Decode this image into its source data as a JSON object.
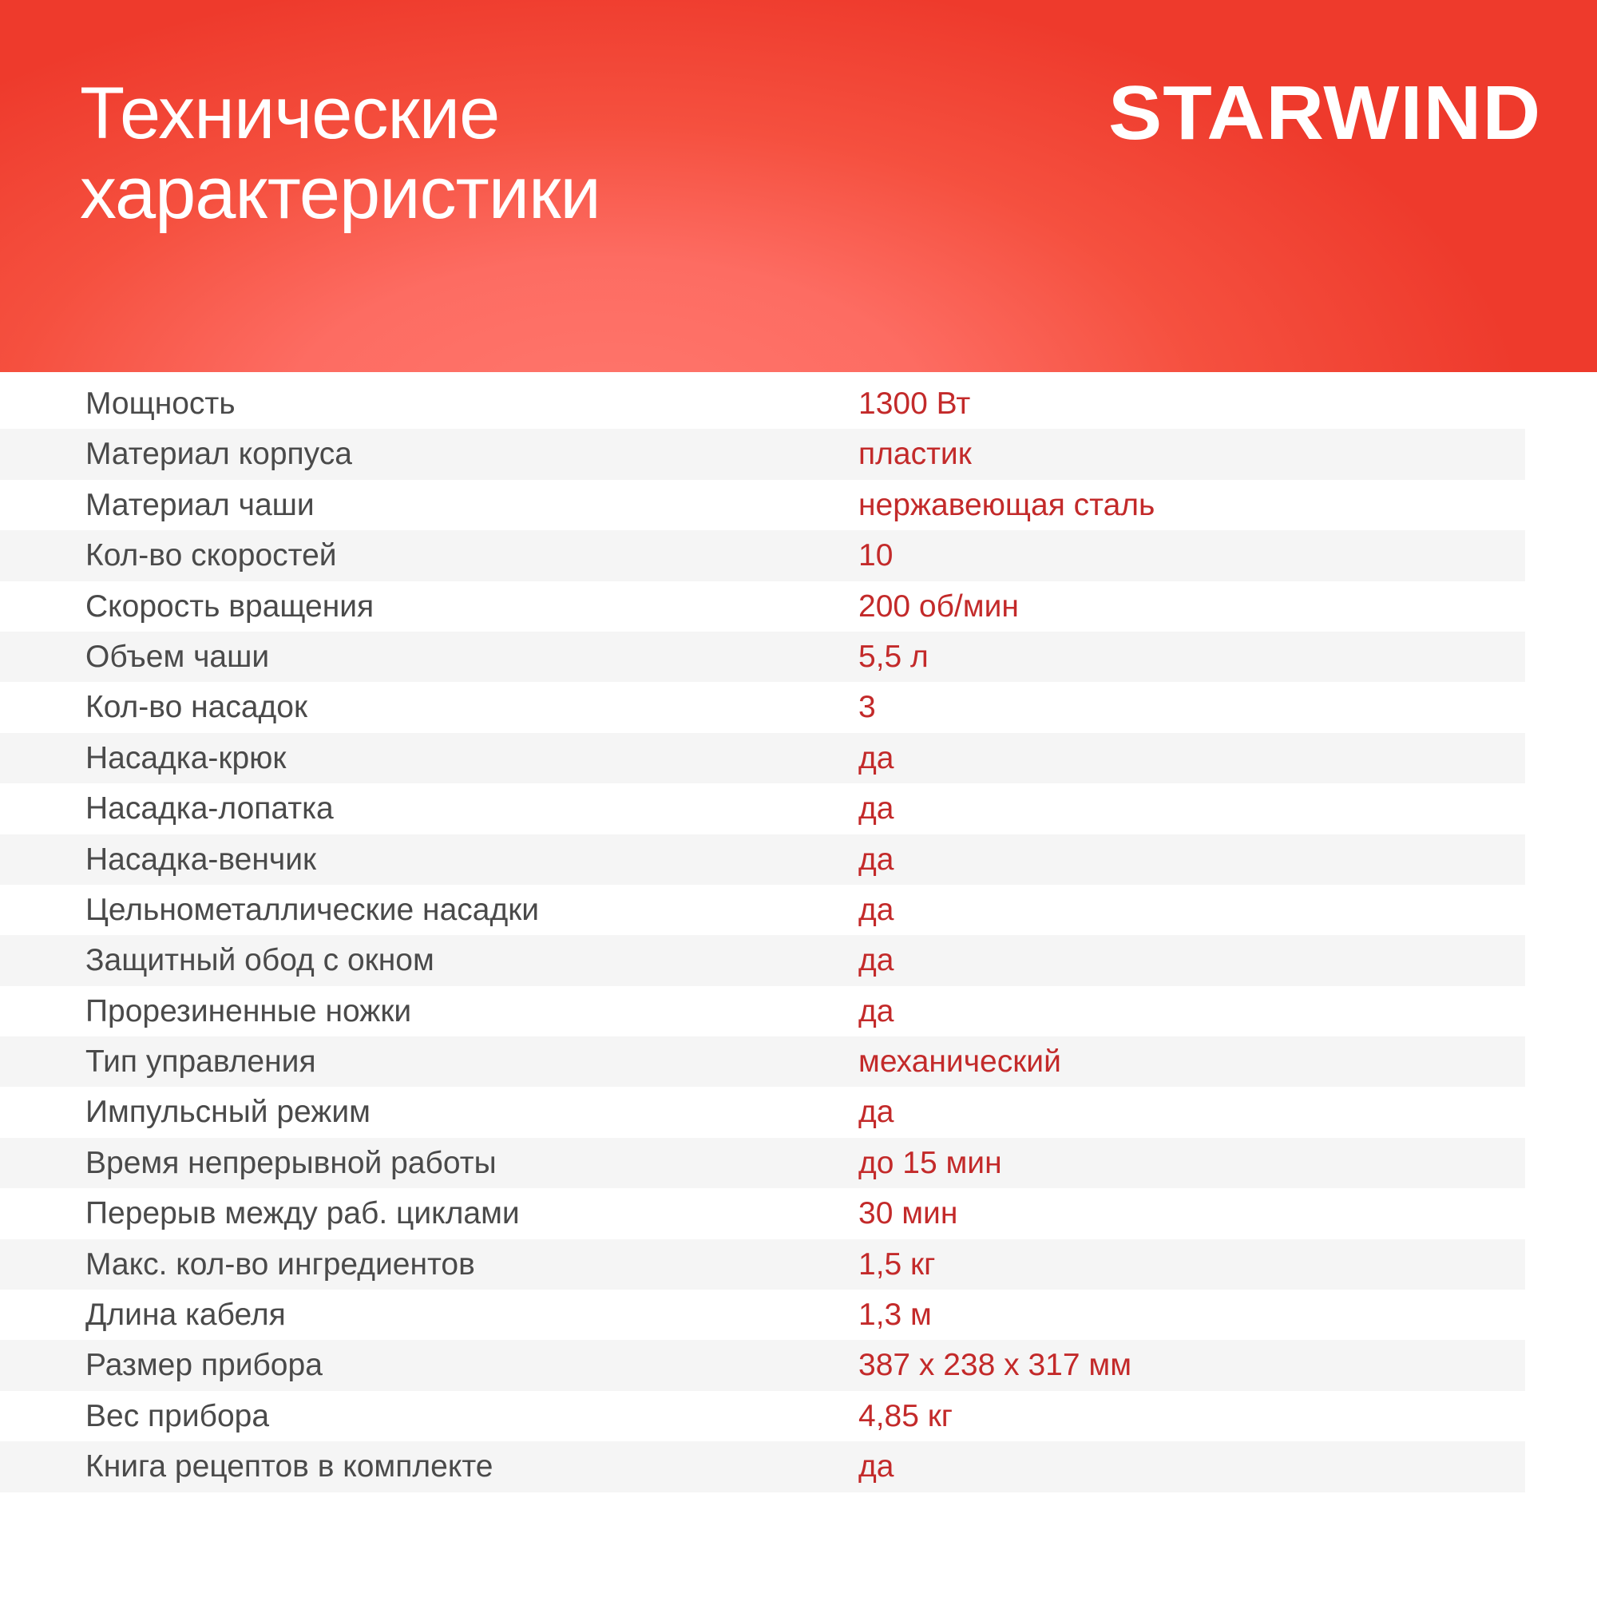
{
  "header": {
    "title_line1": "Технические",
    "title_line2": "характеристики",
    "logo": "STARWIND",
    "colors": {
      "gradient_edge": "#ee3a2c",
      "gradient_center": "#ff766c"
    }
  },
  "specs": [
    {
      "label": "Мощность",
      "value": "1300 Вт"
    },
    {
      "label": "Материал корпуса",
      "value": "пластик"
    },
    {
      "label": "Материал чаши",
      "value": "нержавеющая сталь"
    },
    {
      "label": "Кол-во скоростей",
      "value": "10"
    },
    {
      "label": "Скорость вращения",
      "value": "200 об/мин"
    },
    {
      "label": "Объем чаши",
      "value": "5,5 л"
    },
    {
      "label": "Кол-во насадок",
      "value": "3"
    },
    {
      "label": "Насадка-крюк",
      "value": "да"
    },
    {
      "label": "Насадка-лопатка",
      "value": "да"
    },
    {
      "label": "Насадка-венчик",
      "value": "да"
    },
    {
      "label": "Цельнометаллические насадки",
      "value": "да"
    },
    {
      "label": "Защитный обод с окном",
      "value": "да"
    },
    {
      "label": "Прорезиненные ножки",
      "value": "да"
    },
    {
      "label": "Тип управления",
      "value": "механический"
    },
    {
      "label": "Импульсный режим",
      "value": "да"
    },
    {
      "label": "Время непрерывной работы",
      "value": "до 15 мин"
    },
    {
      "label": "Перерыв между раб. циклами",
      "value": "30 мин"
    },
    {
      "label": "Макс. кол-во ингредиентов",
      "value": "1,5 кг"
    },
    {
      "label": "Длина кабеля",
      "value": "1,3 м"
    },
    {
      "label": "Размер прибора",
      "value": "387 х 238 х 317 мм"
    },
    {
      "label": "Вес прибора",
      "value": "4,85 кг"
    },
    {
      "label": "Книга рецептов в комплекте",
      "value": "да"
    }
  ]
}
